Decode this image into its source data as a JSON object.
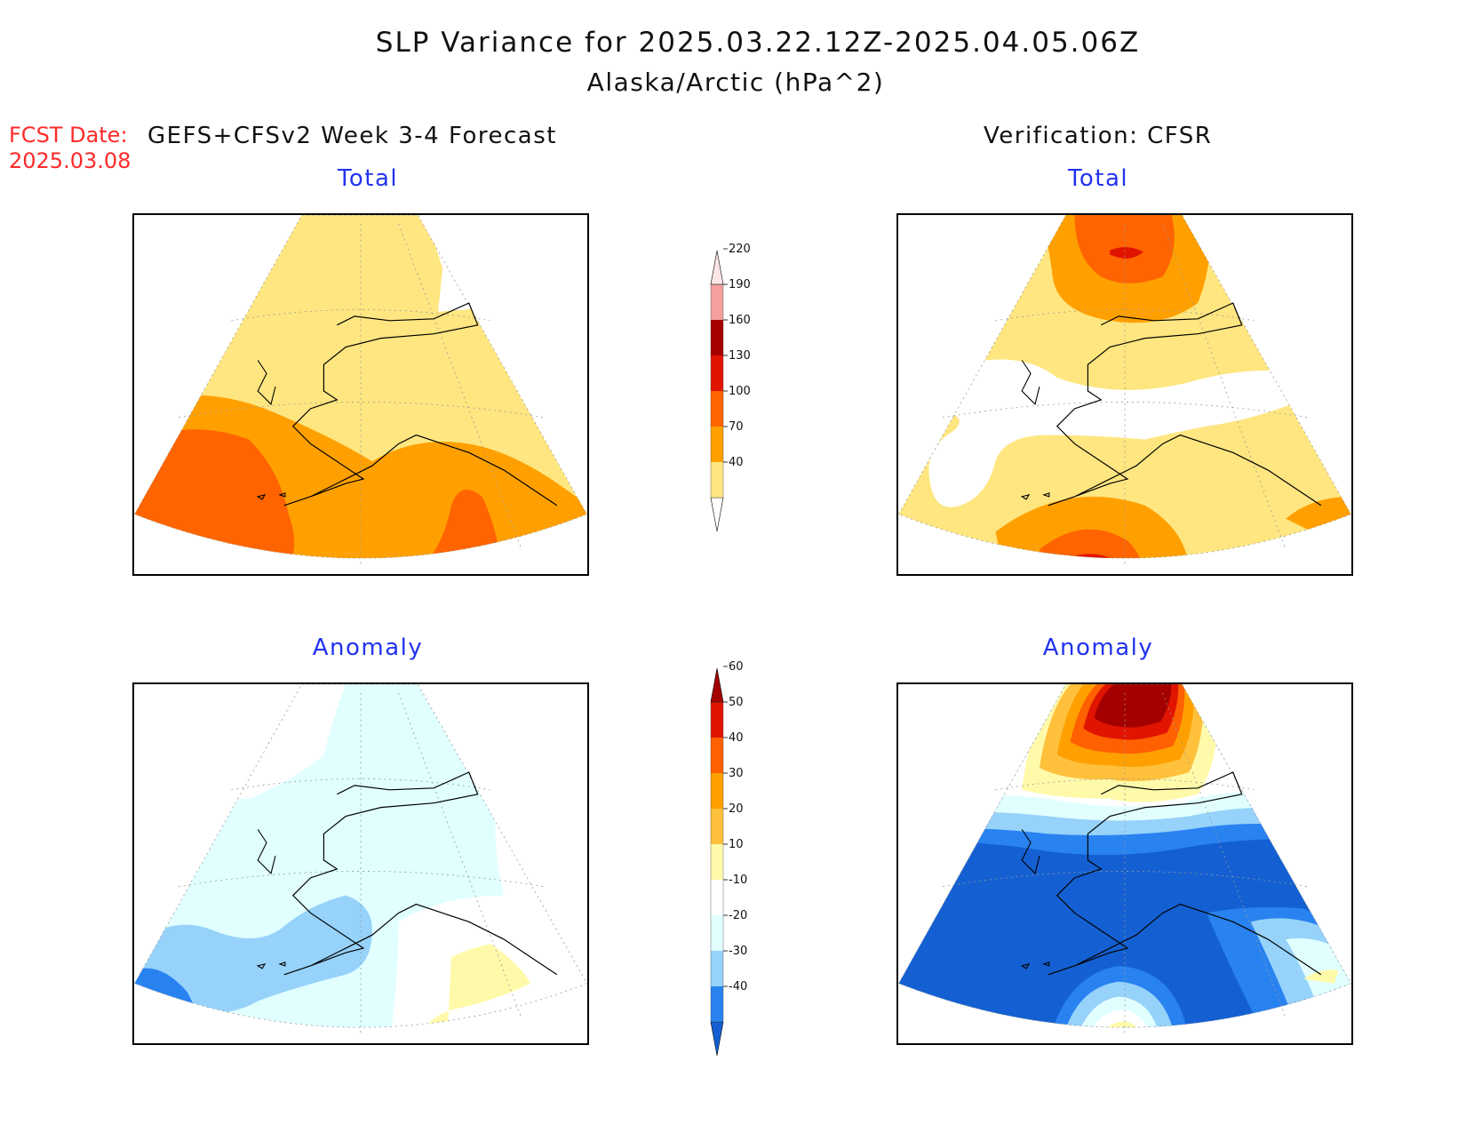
{
  "title": {
    "line1": "SLP Variance for 2025.03.22.12Z-2025.04.05.06Z",
    "line2": "Alaska/Arctic (hPa^2)"
  },
  "forecast_date": {
    "label": "FCST Date:",
    "value": "2025.03.08"
  },
  "columns": {
    "left": "GEFS+CFSv2 Week 3-4 Forecast",
    "right": "Verification: CFSR"
  },
  "panels": {
    "top_left": "Total",
    "top_right": "Total",
    "bottom_left": "Anomaly",
    "bottom_right": "Anomaly"
  },
  "colorbars": {
    "total": {
      "ticks": [
        "40",
        "70",
        "100",
        "130",
        "160",
        "190",
        "220"
      ],
      "colors": [
        "#ffe680",
        "#ffa000",
        "#ff6400",
        "#e11400",
        "#a50000",
        "#f4a0a0",
        "#fde6e6"
      ]
    },
    "anomaly": {
      "ticks": [
        "-40",
        "-30",
        "-20",
        "-10",
        "10",
        "20",
        "30",
        "40",
        "50",
        "60"
      ],
      "colors": [
        "#1460d2",
        "#2882f0",
        "#96d2fa",
        "#e1ffff",
        "#ffffff",
        "#fffaaa",
        "#ffc03c",
        "#ffa000",
        "#ff6000",
        "#e11400",
        "#a50000"
      ]
    }
  }
}
